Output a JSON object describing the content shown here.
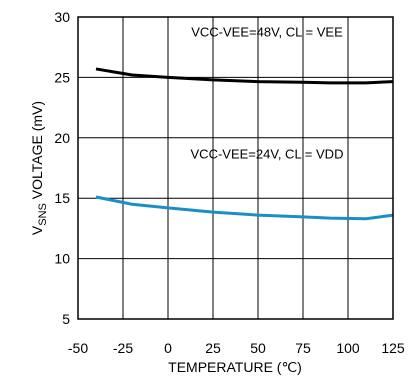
{
  "chart_data": {
    "type": "line",
    "xlabel": "TEMPERATURE (℃)",
    "ylabel": {
      "prefix": "V",
      "sub": "SNS",
      "rest": " VOLTAGE (mV)"
    },
    "xlim": [
      -50,
      125
    ],
    "ylim": [
      5,
      30
    ],
    "xticks": [
      -50,
      -25,
      0,
      25,
      50,
      75,
      100,
      125
    ],
    "yticks": [
      5,
      10,
      15,
      20,
      25,
      30
    ],
    "grid": true,
    "series": [
      {
        "name": "VCC-VEE=48V, CL = VEE",
        "color": "#000000",
        "x": [
          -40,
          -20,
          0,
          25,
          50,
          75,
          90,
          110,
          125
        ],
        "y": [
          25.7,
          25.2,
          25.0,
          24.8,
          24.65,
          24.6,
          24.55,
          24.55,
          24.65
        ]
      },
      {
        "name": "VCC-VEE=24V, CL = VDD",
        "color": "#1a8fc7",
        "x": [
          -40,
          -20,
          0,
          25,
          50,
          75,
          90,
          110,
          125
        ],
        "y": [
          15.1,
          14.5,
          14.2,
          13.85,
          13.6,
          13.45,
          13.35,
          13.3,
          13.6
        ]
      }
    ],
    "annotations": [
      {
        "text": "VCC-VEE=48V, CL = VEE",
        "x": 55,
        "y": 28.4
      },
      {
        "text": "VCC-VEE=24V, CL = VDD",
        "x": 55,
        "y": 18.3
      }
    ]
  }
}
